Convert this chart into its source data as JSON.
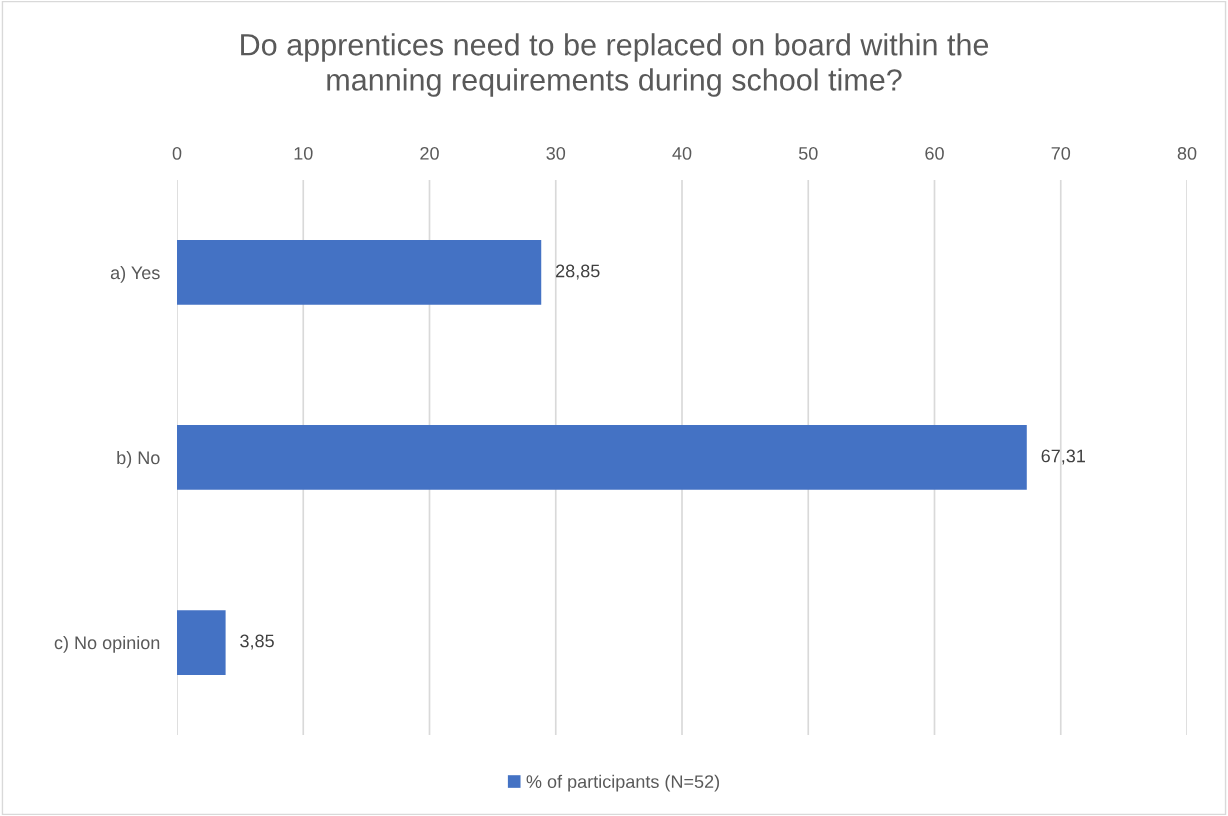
{
  "chart_data": {
    "type": "bar",
    "orientation": "horizontal",
    "title": "Do apprentices need to be replaced on board within the\nmanning requirements during school time?",
    "categories": [
      "a) Yes",
      "b) No",
      "c) No opinion"
    ],
    "series": [
      {
        "name": "% of participants (N=52)",
        "color": "#4472c4",
        "values": [
          28.85,
          67.31,
          3.85
        ],
        "value_labels": [
          "28,85",
          "67,31",
          "3,85"
        ]
      }
    ],
    "xlim": [
      0,
      80
    ],
    "xticks": [
      0,
      10,
      20,
      30,
      40,
      50,
      60,
      70,
      80
    ],
    "grid": "x",
    "legend": "bottom"
  }
}
